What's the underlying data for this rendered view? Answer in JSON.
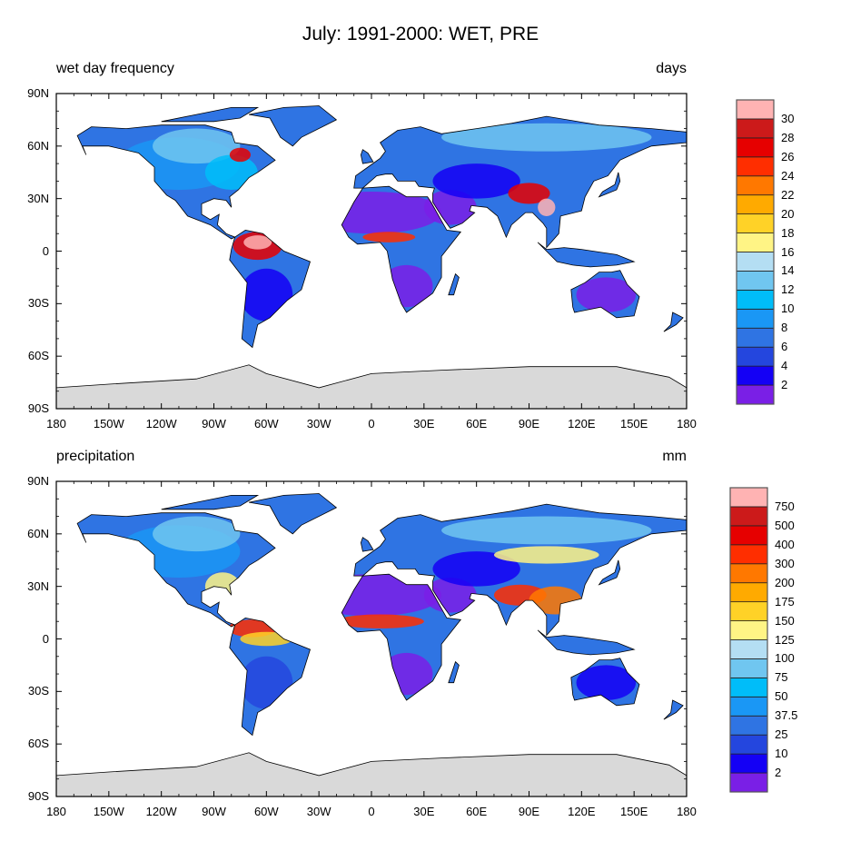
{
  "title": "July: 1991-2000: WET, PRE",
  "x_ticks": [
    "180",
    "150W",
    "120W",
    "90W",
    "60W",
    "30W",
    "0",
    "30E",
    "60E",
    "90E",
    "120E",
    "150E",
    "180"
  ],
  "y_ticks": [
    "90N",
    "60N",
    "30N",
    "0",
    "30S",
    "60S",
    "90S"
  ],
  "colors": [
    "#7a1fe6",
    "#1400f5",
    "#2446de",
    "#2f74e3",
    "#1a97f5",
    "#00bdf9",
    "#70c6f0",
    "#b4def3",
    "#fff485",
    "#ffd227",
    "#ffaa00",
    "#ff7800",
    "#ff2e00",
    "#e60000",
    "#cc1a1a",
    "#ffb3b3"
  ],
  "panels": [
    {
      "left_label": "wet day frequency",
      "right_label": "days",
      "colorbar_labels": [
        "2",
        "4",
        "6",
        "8",
        "10",
        "12",
        "14",
        "16",
        "18",
        "20",
        "22",
        "24",
        "26",
        "28",
        "30"
      ]
    },
    {
      "left_label": "precipitation",
      "right_label": "mm",
      "colorbar_labels": [
        "2",
        "10",
        "25",
        "37.5",
        "50",
        "75",
        "100",
        "125",
        "150",
        "175",
        "200",
        "300",
        "400",
        "500",
        "750"
      ]
    }
  ]
}
